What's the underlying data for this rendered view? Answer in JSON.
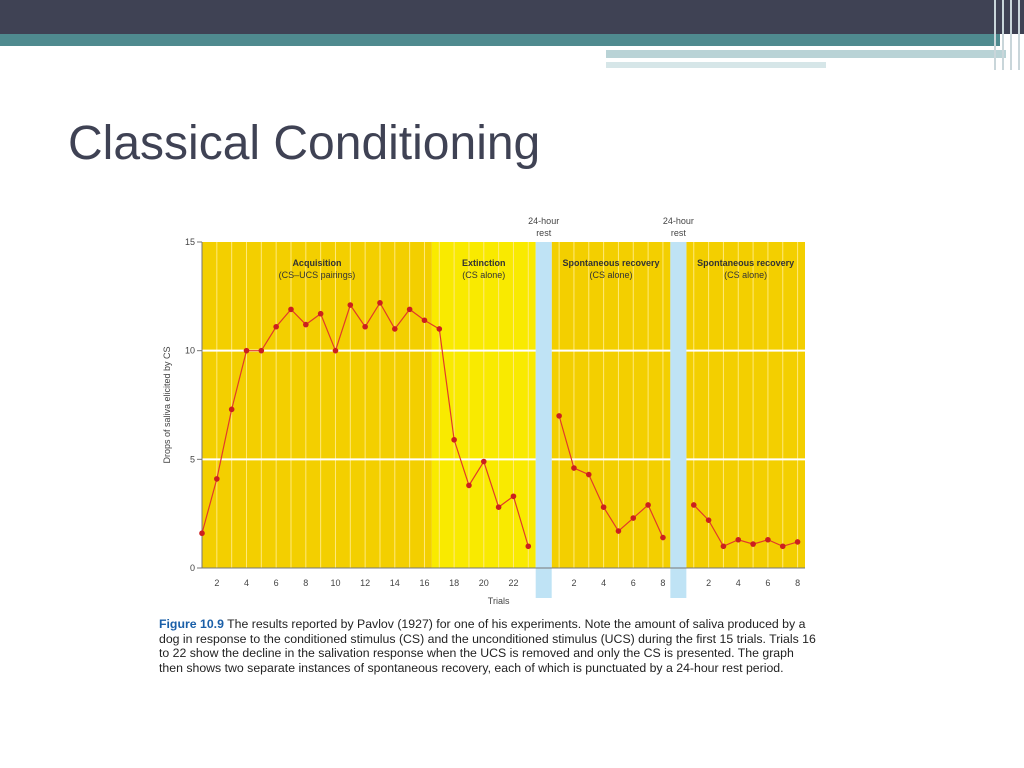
{
  "slide": {
    "title": "Classical Conditioning"
  },
  "chart_data": {
    "type": "line",
    "ylabel": "Drops of saliva elicited by CS",
    "xlabel": "Trials",
    "ylim": [
      0,
      15
    ],
    "yticks": [
      0,
      5,
      10,
      15
    ],
    "grid": true,
    "colors": {
      "background": "#f3cf00",
      "extinction_background": "#f9ea00",
      "rest_bar": "#bfe3f5",
      "line": "#e23a2a",
      "marker": "#cc1f1f",
      "vline": "#ffe97a",
      "hline": "#ffffff"
    },
    "phases": [
      {
        "name": "Acquisition",
        "sub": "(CS–UCS pairings)",
        "tick_labels": [
          "2",
          "4",
          "6",
          "8",
          "10",
          "12",
          "14",
          "16",
          "18",
          "20",
          "22"
        ],
        "values": [
          1.6,
          4.1,
          7.3,
          10.0,
          10.0,
          11.1,
          11.9,
          11.2,
          11.7,
          10.0,
          12.1,
          11.1,
          12.2,
          11.0,
          11.9,
          11.4,
          11.0,
          5.9,
          3.8,
          4.9,
          2.8,
          3.3,
          1.0
        ]
      },
      {
        "name": "Extinction",
        "sub": "(CS alone)"
      },
      {
        "name": "Spontaneous recovery",
        "sub": "(CS alone)",
        "tick_labels": [
          "2",
          "4",
          "6",
          "8"
        ],
        "values": [
          7.0,
          4.6,
          4.3,
          2.8,
          1.7,
          2.3,
          2.9,
          1.4
        ]
      },
      {
        "name": "Spontaneous recovery",
        "sub": "(CS alone)",
        "tick_labels": [
          "2",
          "4",
          "6",
          "8"
        ],
        "values": [
          2.9,
          2.2,
          1.0,
          1.3,
          1.1,
          1.3,
          1.0,
          1.2
        ]
      }
    ],
    "rest_label_1": "24-hour",
    "rest_label_2": "rest"
  },
  "caption": {
    "label": "Figure 10.9",
    "text": "The results reported by Pavlov (1927) for one of his experiments. Note the amount of saliva produced by a dog in response to the conditioned stimulus (CS) and the unconditioned stimulus (UCS) during the first 15 trials. Trials 16 to 22 show the decline in the salivation response when the UCS is removed and only the CS is presented. The graph then shows two separate instances of spontaneous recovery, each of which is punctuated by a 24-hour rest period."
  }
}
